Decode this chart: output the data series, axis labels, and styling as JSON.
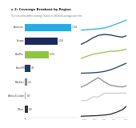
{
  "title": "e 2: Coverage Breakout by Region",
  "subtitle": "% of securities within coverage. Values in USD and coverage over time.",
  "regions": [
    "Americas",
    "Europe",
    "Asia/Pac",
    "Asia EM",
    "Mid-East",
    "Africa & Latam",
    "Other"
  ],
  "bar_values": [
    100,
    70,
    52,
    13,
    5,
    3,
    7
  ],
  "bar_colors": [
    "#29ABE2",
    "#1B2A5C",
    "#8DC63F",
    "#1B3A6C",
    "#888888",
    "#AAAAAA",
    "#333333"
  ],
  "bar_labels": [
    "3,344",
    "2,345",
    "1,885",
    "445",
    "214",
    "197",
    "248"
  ],
  "line_colors": [
    "#29ABE2",
    "#1B2A5C",
    "#8DC63F",
    "#1B3A6C",
    "#888888",
    "#CCCCCC",
    "#222222"
  ],
  "background_color": "#ffffff",
  "time_points": [
    1993,
    1996,
    1999,
    2002,
    2005,
    2008,
    2011,
    2014,
    2016
  ],
  "line_data": {
    "Americas": [
      10,
      14,
      18,
      22,
      30,
      45,
      65,
      85,
      100
    ],
    "Europe": [
      20,
      35,
      55,
      70,
      75,
      72,
      65,
      60,
      68
    ],
    "Asia/Pac": [
      8,
      10,
      12,
      13,
      14,
      15,
      15,
      16,
      17
    ],
    "Asia EM": [
      2,
      3,
      5,
      8,
      14,
      25,
      40,
      58,
      70
    ],
    "Mid-East": [
      10,
      15,
      22,
      28,
      20,
      14,
      12,
      11,
      13
    ],
    "Africa & Latam": [
      3,
      3,
      4,
      4,
      5,
      5,
      5,
      5,
      5
    ],
    "Other": [
      2,
      3,
      4,
      5,
      7,
      10,
      18,
      28,
      42
    ]
  },
  "x_tick_labels": [
    "1995",
    "1998",
    "2001",
    "2004",
    "2007",
    "2010",
    "2013",
    "2016"
  ]
}
